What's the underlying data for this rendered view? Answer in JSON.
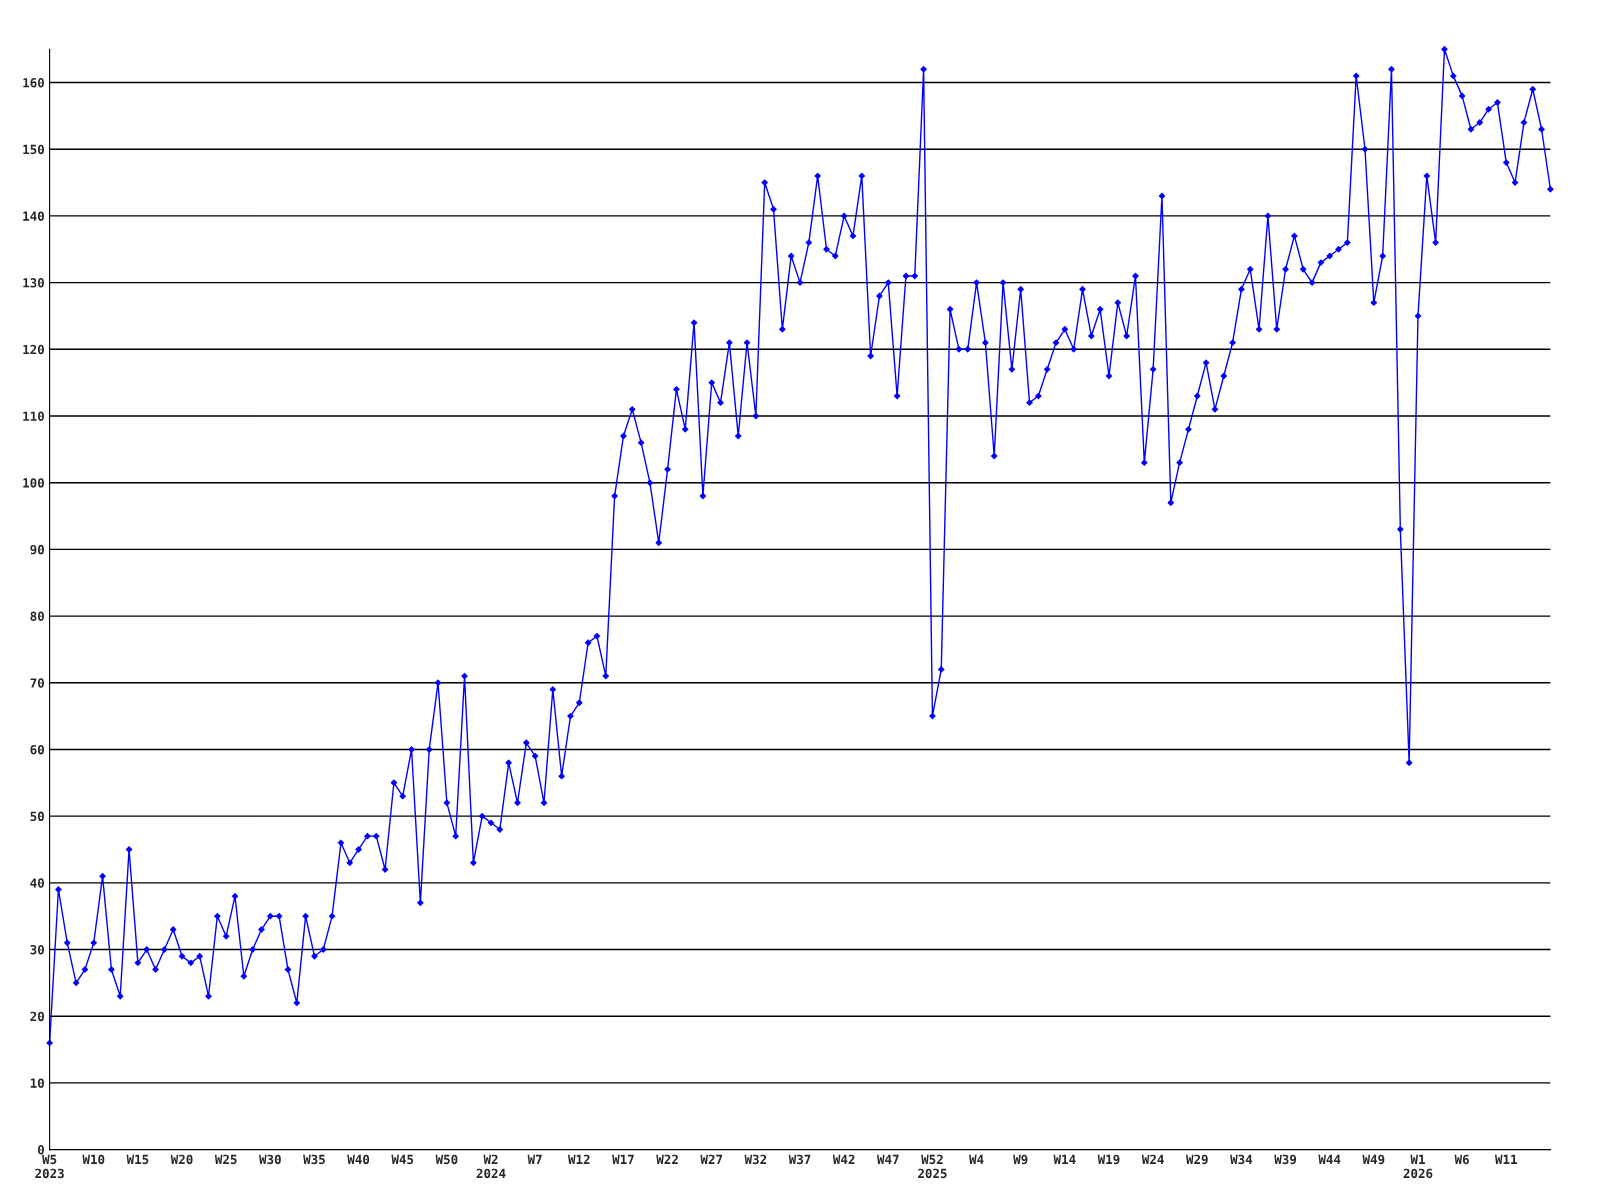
{
  "chart_data": {
    "type": "line",
    "categories": [
      "W5\n2023",
      null,
      null,
      null,
      null,
      "W10",
      null,
      null,
      null,
      null,
      "W15",
      null,
      null,
      null,
      null,
      "W20",
      null,
      null,
      null,
      null,
      "W25",
      null,
      null,
      null,
      null,
      "W30",
      null,
      null,
      null,
      null,
      "W35",
      null,
      null,
      null,
      null,
      "W40",
      null,
      null,
      null,
      null,
      "W45",
      null,
      null,
      null,
      null,
      "W50",
      null,
      null,
      null,
      null,
      "W2\n2024",
      null,
      null,
      null,
      null,
      "W7",
      null,
      null,
      null,
      null,
      "W12",
      null,
      null,
      null,
      null,
      "W17",
      null,
      null,
      null,
      null,
      "W22",
      null,
      null,
      null,
      null,
      "W27",
      null,
      null,
      null,
      null,
      "W32",
      null,
      null,
      null,
      null,
      "W37",
      null,
      null,
      null,
      null,
      "W42",
      null,
      null,
      null,
      null,
      "W47",
      null,
      null,
      null,
      null,
      "W52\n2025",
      null,
      null,
      null,
      null,
      "W4",
      null,
      null,
      null,
      null,
      "W9",
      null,
      null,
      null,
      null,
      "W14",
      null,
      null,
      null,
      null,
      "W19",
      null,
      null,
      null,
      null,
      "W24",
      null,
      null,
      null,
      null,
      "W29",
      null,
      null,
      null,
      null,
      "W34",
      null,
      null,
      null,
      null,
      "W39",
      null,
      null,
      null,
      null,
      "W44",
      null,
      null,
      null,
      null,
      "W49",
      null,
      null,
      null,
      null,
      "W1\n2026",
      null,
      null,
      null,
      null,
      "W6",
      null,
      null,
      null,
      null,
      "W11",
      null,
      null,
      null,
      null,
      null
    ],
    "series": [
      {
        "color": "#0000ff",
        "values": [
          16,
          39,
          31,
          25,
          27,
          31,
          41,
          27,
          23,
          45,
          28,
          30,
          27,
          30,
          33,
          29,
          28,
          29,
          23,
          35,
          32,
          38,
          26,
          30,
          33,
          35,
          35,
          27,
          22,
          35,
          29,
          30,
          35,
          46,
          43,
          45,
          47,
          47,
          42,
          55,
          53,
          60,
          37,
          60,
          70,
          52,
          47,
          71,
          43,
          50,
          49,
          48,
          58,
          52,
          61,
          59,
          52,
          69,
          56,
          65,
          67,
          76,
          77,
          71,
          98,
          107,
          111,
          106,
          100,
          91,
          102,
          114,
          108,
          124,
          98,
          115,
          112,
          121,
          107,
          121,
          110,
          145,
          141,
          123,
          134,
          130,
          136,
          146,
          135,
          134,
          140,
          137,
          146,
          119,
          128,
          130,
          113,
          131,
          131,
          162,
          65,
          72,
          126,
          120,
          120,
          130,
          121,
          104,
          130,
          117,
          129,
          112,
          113,
          117,
          121,
          123,
          120,
          129,
          122,
          126,
          116,
          127,
          122,
          131,
          103,
          117,
          143,
          97,
          103,
          108,
          113,
          118,
          111,
          116,
          121,
          129,
          132,
          123,
          140,
          123,
          132,
          137,
          132,
          130,
          133,
          134,
          135,
          136,
          161,
          150,
          127,
          134,
          162,
          93,
          58,
          125,
          146,
          136,
          165,
          161,
          158,
          153,
          154,
          156,
          157,
          148,
          145,
          154,
          159,
          153,
          144
        ]
      }
    ],
    "ylim": [
      0,
      165
    ],
    "yticks": [
      0,
      10,
      20,
      30,
      40,
      50,
      60,
      70,
      80,
      90,
      100,
      110,
      120,
      130,
      140,
      150,
      160
    ],
    "grid": "y",
    "marker": "diamond",
    "line_style": "solid"
  }
}
